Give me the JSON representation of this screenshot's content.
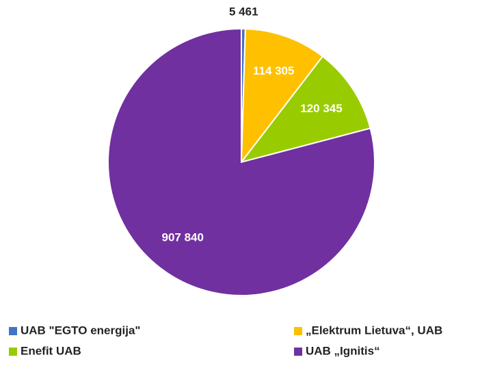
{
  "chart_data": {
    "type": "pie",
    "categories": [
      "UAB \"EGTO energija\"",
      "„Elektrum Lietuva“, UAB",
      "Enefit UAB",
      "UAB „Ignitis“"
    ],
    "values": [
      5461,
      114305,
      120345,
      907840
    ],
    "value_labels": [
      "5 461",
      "114 305",
      "120 345",
      "907 840"
    ],
    "colors": [
      "#4472c4",
      "#ffc000",
      "#99cc00",
      "#7030a0"
    ],
    "legend": "bottom"
  }
}
